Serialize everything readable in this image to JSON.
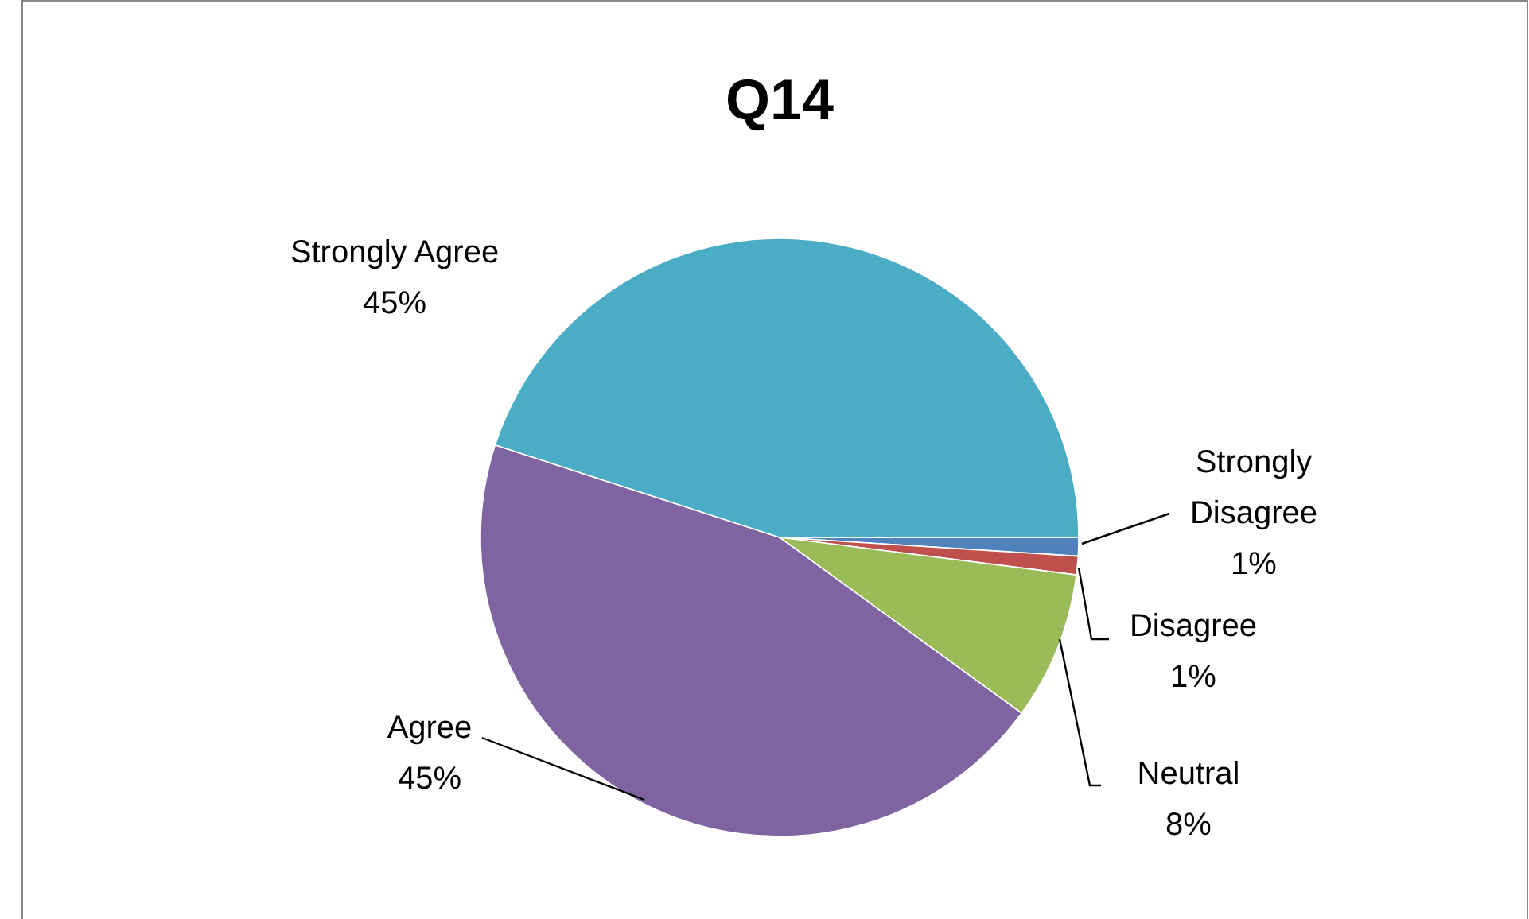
{
  "chart_data": {
    "type": "pie",
    "title": "Q14",
    "categories": [
      "Strongly Disagree",
      "Disagree",
      "Neutral",
      "Agree",
      "Strongly Agree"
    ],
    "values": [
      1,
      1,
      8,
      45,
      45
    ],
    "colors": [
      "#4f81bd",
      "#c0504d",
      "#9bbb59",
      "#8064a2",
      "#4bacc6"
    ],
    "value_labels": [
      "1%",
      "1%",
      "8%",
      "45%",
      "45%"
    ]
  }
}
